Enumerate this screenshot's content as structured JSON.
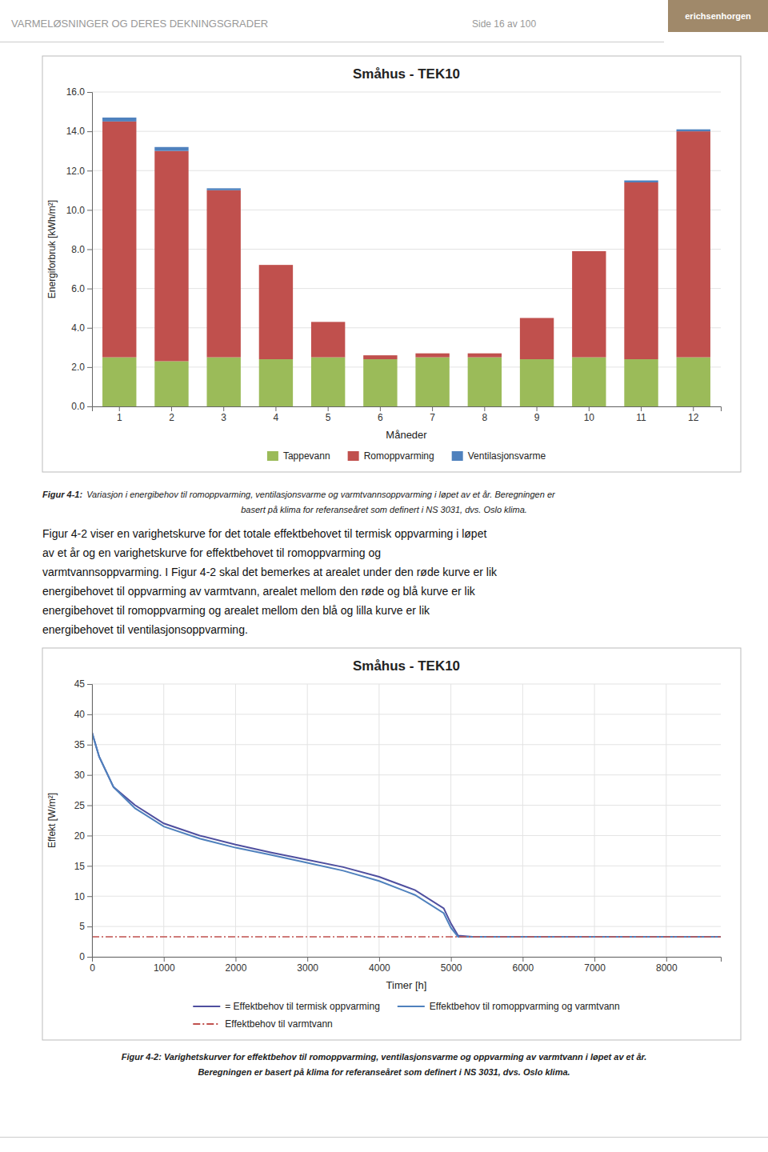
{
  "page_title": "VARMELØSNINGER OG DERES DEKNINGSGRADER",
  "page_subtitle": "Side 16 av 100",
  "logo_text": "erichsenhorgen",
  "body_text": [
    "Figur 4-2 viser en varighetskurve for det totale effektbehovet til termisk oppvarming i løpet",
    "av et år og en varighetskurve for effektbehovet til romoppvarming og",
    "varmtvannsoppvarming. I Figur 4-2 skal det bemerkes at arealet under den røde kurve er lik",
    "energibehovet til oppvarming av varmtvann, arealet mellom den røde og blå kurve er lik",
    "energibehovet til romoppvarming og arealet mellom den blå og lilla kurve er lik",
    "energibehovet til ventilasjonsoppvarming."
  ],
  "chart_data": [
    {
      "type": "bar",
      "stacked": true,
      "title": "Småhus - TEK10",
      "xlabel": "Måneder",
      "ylabel": "Energiforbruk [kWh/m²]",
      "categories": [
        "1",
        "2",
        "3",
        "4",
        "5",
        "6",
        "7",
        "8",
        "9",
        "10",
        "11",
        "12"
      ],
      "series": [
        {
          "name": "Tappevann",
          "color": "#9BBB59",
          "values": [
            2.5,
            2.3,
            2.5,
            2.4,
            2.5,
            2.4,
            2.5,
            2.5,
            2.4,
            2.5,
            2.4,
            2.5
          ]
        },
        {
          "name": "Romoppvarming",
          "color": "#C0504D",
          "values": [
            12.0,
            10.7,
            8.5,
            4.8,
            1.8,
            0.2,
            0.2,
            0.2,
            2.1,
            5.4,
            9.0,
            11.5
          ]
        },
        {
          "name": "Ventilasjonsvarme",
          "color": "#4F81BD",
          "values": [
            0.2,
            0.2,
            0.1,
            0.0,
            0.0,
            0.0,
            0.0,
            0.0,
            0.0,
            0.0,
            0.1,
            0.1
          ]
        }
      ],
      "ylim": [
        0,
        16
      ],
      "yticks": [
        {
          "value": 0,
          "label": "0.0"
        },
        {
          "value": 2,
          "label": "2.0"
        },
        {
          "value": 4,
          "label": "4.0"
        },
        {
          "value": 6,
          "label": "6.0"
        },
        {
          "value": 8,
          "label": "8.0"
        },
        {
          "value": 10,
          "label": "10.0"
        },
        {
          "value": 12,
          "label": "12.0"
        },
        {
          "value": 14,
          "label": "14.0"
        },
        {
          "value": 16,
          "label": "16.0"
        }
      ],
      "grid": "y",
      "legend": "bottom",
      "caption": {
        "label": "Figur 4-1:",
        "lines": [
          "Variasjon i energibehov til romoppvarming, ventilasjonsvarme og varmtvannsoppvarming i løpet av et år. Beregningen er",
          "basert på klima for referanseåret som definert i NS 3031, dvs. Oslo klima."
        ]
      }
    },
    {
      "type": "line",
      "title": "Småhus - TEK10",
      "xlabel": "Timer [h]",
      "ylabel": "Effekt [W/m²]",
      "series": [
        {
          "name": "= Effektbehov til termisk oppvarming",
          "color": "#4F4F9F",
          "line_style": "solid",
          "x": [
            0,
            100,
            300,
            600,
            1000,
            1500,
            2000,
            2500,
            3000,
            3500,
            4000,
            4500,
            4900,
            5000,
            5100,
            5300,
            5500,
            6000,
            7000,
            8000,
            8760
          ],
          "values": [
            37,
            33,
            28,
            25,
            22,
            20,
            18.5,
            17.2,
            16.0,
            14.8,
            13.2,
            11.0,
            8.0,
            5.5,
            3.5,
            3.3,
            3.3,
            3.3,
            3.3,
            3.3,
            3.3
          ]
        },
        {
          "name": "Effektbehov til romoppvarming og varmtvann",
          "color": "#4F81BD",
          "line_style": "solid",
          "x": [
            0,
            100,
            300,
            600,
            1000,
            1500,
            2000,
            2500,
            3000,
            3500,
            4000,
            4500,
            4900,
            5000,
            5100,
            5200,
            5300,
            6000,
            7000,
            8000,
            8760
          ],
          "values": [
            37,
            33,
            28,
            24.5,
            21.5,
            19.5,
            18.0,
            16.8,
            15.5,
            14.2,
            12.5,
            10.2,
            7.2,
            4.8,
            3.3,
            3.3,
            3.3,
            3.3,
            3.3,
            3.3,
            3.3
          ]
        },
        {
          "name": "Effektbehov til varmtvann",
          "color": "#C0504D",
          "line_style": "dashdot",
          "x": [
            0,
            1000,
            2000,
            3000,
            4000,
            4900,
            5000,
            5200,
            6000,
            7000,
            8000,
            8760
          ],
          "values": [
            3.3,
            3.3,
            3.3,
            3.3,
            3.3,
            3.3,
            3.3,
            3.3,
            3.3,
            3.3,
            3.3,
            3.3
          ]
        }
      ],
      "xlim": [
        0,
        8760
      ],
      "xticks": [
        0,
        1000,
        2000,
        3000,
        4000,
        5000,
        6000,
        7000,
        8000
      ],
      "ylim": [
        0,
        45
      ],
      "yticks": [
        0,
        5,
        10,
        15,
        20,
        25,
        30,
        35,
        40,
        45
      ],
      "grid": true,
      "legend": "bottom",
      "caption": {
        "lines": [
          "Figur 4-2: Varighetskurver for effektbehov til romoppvarming, ventilasjonsvarme og oppvarming av varmtvann i løpet av et år.",
          "Beregningen er basert på klima for referanseåret som definert i NS 3031, dvs. Oslo klima."
        ]
      }
    }
  ]
}
